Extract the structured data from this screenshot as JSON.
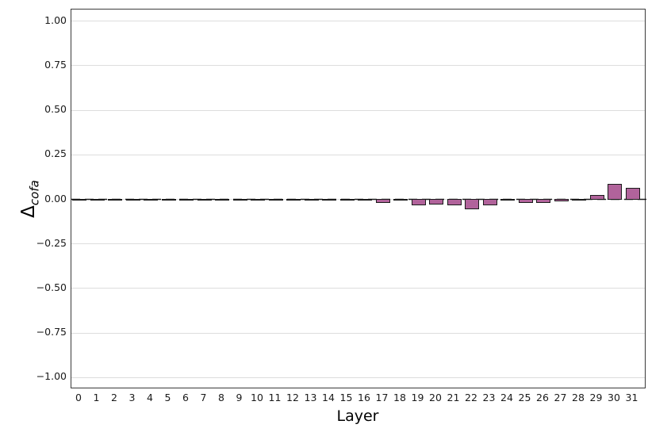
{
  "figure": {
    "ylabel_base": "Δ",
    "ylabel_sub": "cofa",
    "xlabel": "Layer"
  },
  "chart_data": {
    "type": "bar",
    "title": "",
    "xlabel": "Layer",
    "ylabel": "Δ_cofa",
    "categories": [
      "0",
      "1",
      "2",
      "3",
      "4",
      "5",
      "6",
      "7",
      "8",
      "9",
      "10",
      "11",
      "12",
      "13",
      "14",
      "15",
      "16",
      "17",
      "18",
      "19",
      "20",
      "21",
      "22",
      "23",
      "24",
      "25",
      "26",
      "27",
      "28",
      "29",
      "30",
      "31"
    ],
    "values": [
      0,
      0,
      0,
      0,
      0,
      0,
      0,
      0,
      0,
      0,
      0,
      0,
      0,
      0,
      0,
      0,
      0,
      -0.015,
      -0.008,
      -0.028,
      -0.024,
      -0.031,
      -0.052,
      -0.03,
      -0.008,
      -0.016,
      -0.016,
      -0.01,
      -0.002,
      0.019,
      0.085,
      0.062
    ],
    "ylim": [
      -1.07,
      1.07
    ],
    "y_ticks": [
      1.0,
      0.75,
      0.5,
      0.25,
      0.0,
      -0.25,
      -0.5,
      -0.75,
      -1.0
    ],
    "y_tick_labels": [
      "1.00",
      "0.75",
      "0.50",
      "0.25",
      "0.00",
      "−0.25",
      "−0.50",
      "−0.75",
      "−1.00"
    ],
    "grid": true,
    "legend": null,
    "bar_color": "#b1639b",
    "bar_edge_color": "#1a1a1a",
    "zero_line": {
      "y": 0,
      "style": "dashed",
      "color": "#1a1a1a"
    }
  }
}
